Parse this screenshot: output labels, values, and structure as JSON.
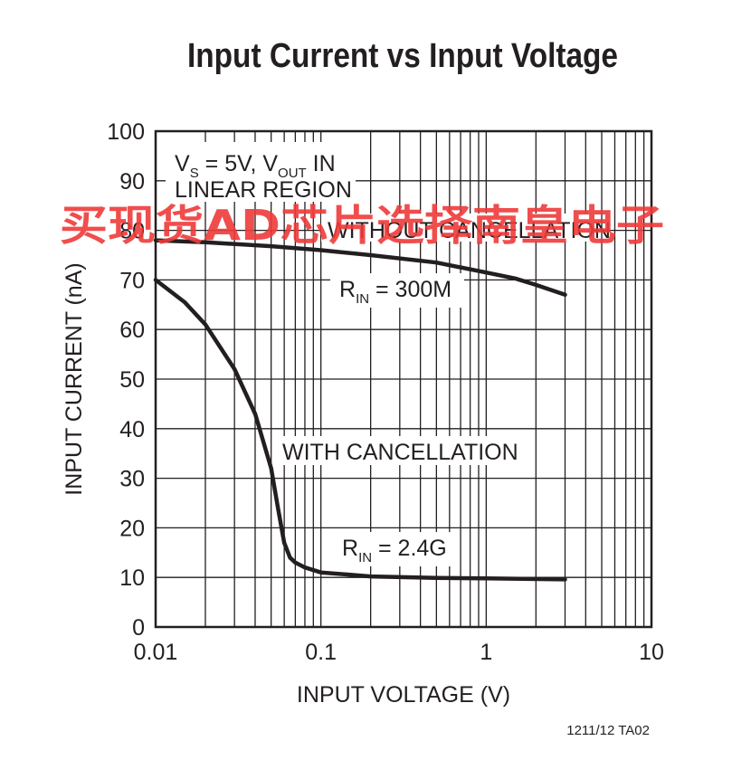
{
  "chart_data": {
    "type": "line",
    "title": "Input Current vs Input Voltage",
    "xlabel": "INPUT VOLTAGE (V)",
    "ylabel": "INPUT CURRENT (nA)",
    "x_scale": "log",
    "xlim": [
      0.01,
      10
    ],
    "ylim": [
      0,
      100
    ],
    "x_ticks": [
      "0.01",
      "0.1",
      "1",
      "10"
    ],
    "y_ticks": [
      "0",
      "10",
      "20",
      "30",
      "40",
      "50",
      "60",
      "70",
      "80",
      "90",
      "100"
    ],
    "grid": true,
    "legend": "none",
    "series": [
      {
        "name": "WITHOUT CANCELLATION",
        "x": [
          0.01,
          0.02,
          0.05,
          0.1,
          0.2,
          0.5,
          1,
          1.5,
          2,
          3
        ],
        "y": [
          78,
          77.6,
          76.8,
          76,
          75,
          73.5,
          71.5,
          70.3,
          69,
          67
        ]
      },
      {
        "name": "WITH CANCELLATION",
        "x": [
          0.01,
          0.015,
          0.02,
          0.03,
          0.04,
          0.05,
          0.055,
          0.06,
          0.065,
          0.07,
          0.08,
          0.1,
          0.2,
          0.5,
          1,
          3
        ],
        "y": [
          70,
          65.5,
          61,
          52,
          43,
          32,
          24,
          17,
          14,
          13,
          12,
          11,
          10.2,
          9.9,
          9.8,
          9.6
        ]
      }
    ],
    "annotations": {
      "conditions_line1_main": "V",
      "conditions_line1_sub": "S",
      "conditions_line1_mid": " = 5V, V",
      "conditions_line1_sub2": "OUT",
      "conditions_line1_end": " IN",
      "conditions_line2": "LINEAR REGION",
      "without_label": "WITHOUT CANCELLATION",
      "rin_300m_main": "R",
      "rin_300m_sub": "IN",
      "rin_300m_end": " = 300M",
      "with_label": "WITH CANCELLATION",
      "rin_24g_main": "R",
      "rin_24g_sub": "IN",
      "rin_24g_end": " = 2.4G"
    },
    "figure_id": "1211/12 TA02",
    "watermark": "买现货AD芯片选择南皇电子",
    "colors": {
      "curve": "#231f20",
      "grid": "#231f20",
      "watermark": "#ee3a3a"
    }
  }
}
